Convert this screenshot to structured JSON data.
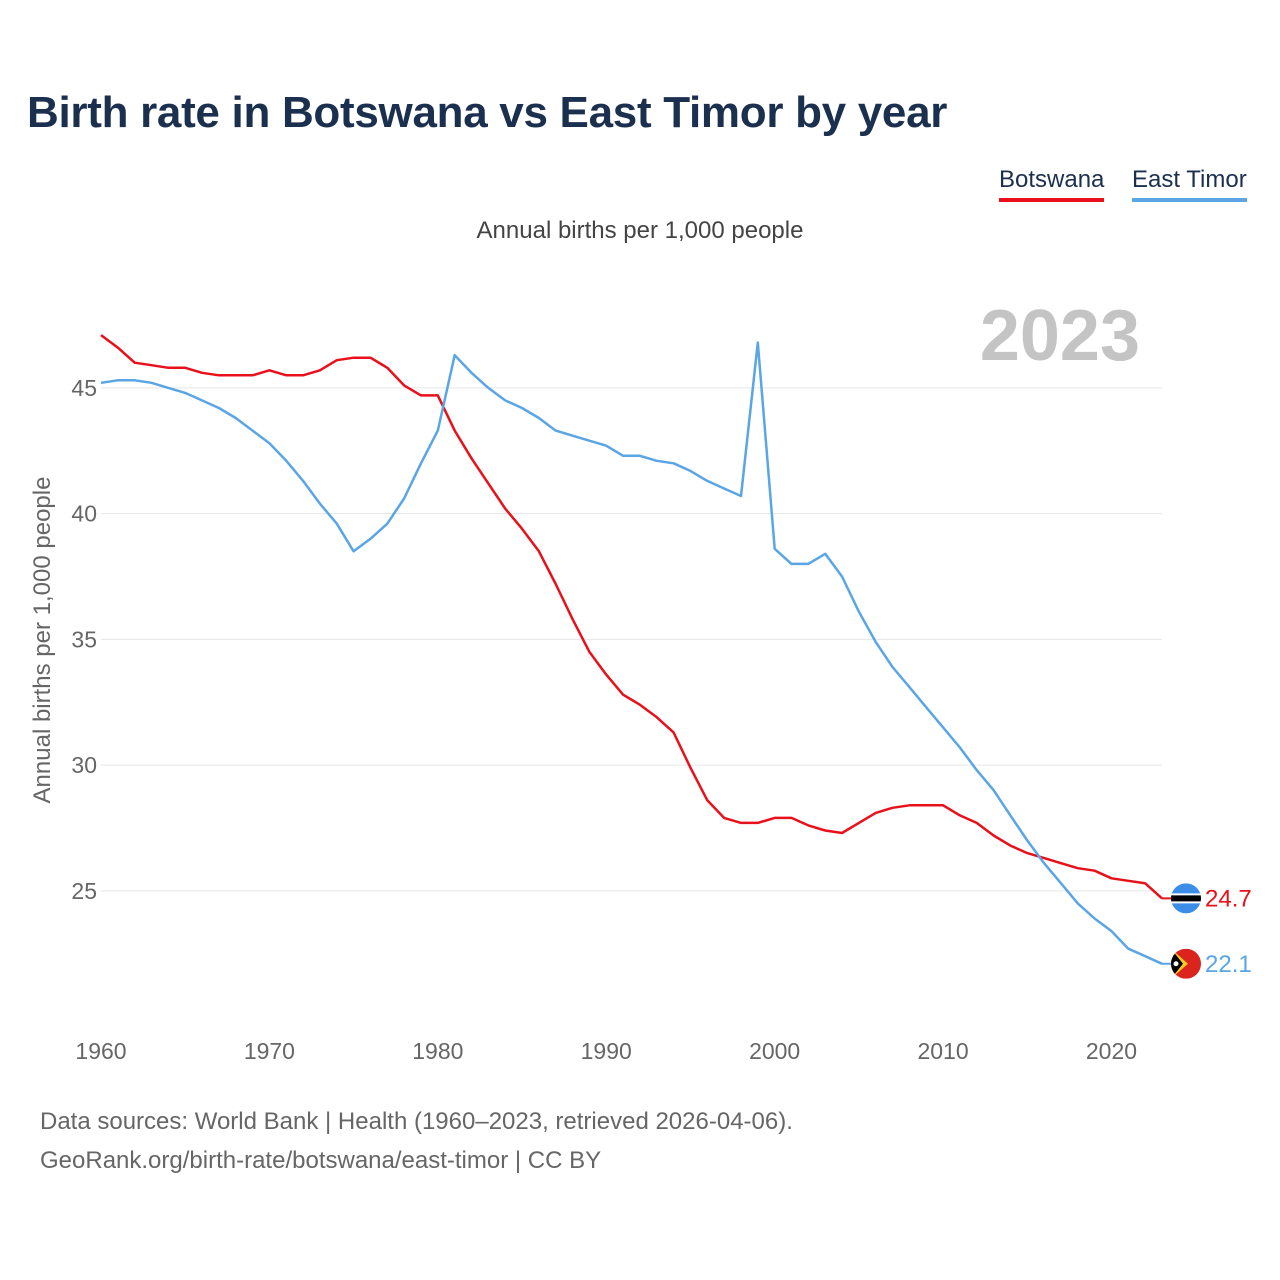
{
  "title": "Birth rate in Botswana vs East Timor by year",
  "subtitle": "Annual births per 1,000 people",
  "legend": [
    {
      "label": "Botswana",
      "color": "#e8101a"
    },
    {
      "label": "East Timor",
      "color": "#5aa5e6"
    }
  ],
  "year_watermark": "2023",
  "footer": {
    "line1": "Data sources: World Bank | Health (1960–2023, retrieved 2026-04-06).",
    "line2": "GeoRank.org/birth-rate/botswana/east-timor | CC BY"
  },
  "chart_data": {
    "type": "line",
    "title": "Birth rate in Botswana vs East Timor by year",
    "xlabel": "",
    "ylabel": "Annual births per 1,000 people",
    "xlim": [
      1960,
      2023
    ],
    "ylim": [
      20.5,
      47.5
    ],
    "xticks": [
      1960,
      1970,
      1980,
      1990,
      2000,
      2010,
      2020
    ],
    "yticks": [
      25,
      30,
      35,
      40,
      45
    ],
    "grid": true,
    "x": [
      1960,
      1961,
      1962,
      1963,
      1964,
      1965,
      1966,
      1967,
      1968,
      1969,
      1970,
      1971,
      1972,
      1973,
      1974,
      1975,
      1976,
      1977,
      1978,
      1979,
      1980,
      1981,
      1982,
      1983,
      1984,
      1985,
      1986,
      1987,
      1988,
      1989,
      1990,
      1991,
      1992,
      1993,
      1994,
      1995,
      1996,
      1997,
      1998,
      1999,
      2000,
      2001,
      2002,
      2003,
      2004,
      2005,
      2006,
      2007,
      2008,
      2009,
      2010,
      2011,
      2012,
      2013,
      2014,
      2015,
      2016,
      2017,
      2018,
      2019,
      2020,
      2021,
      2022,
      2023
    ],
    "series": [
      {
        "name": "Botswana",
        "color": "#e8101a",
        "end_label": "24.7",
        "flag": "botswana-flag-icon",
        "values": [
          47.1,
          46.6,
          46.0,
          45.9,
          45.8,
          45.8,
          45.6,
          45.5,
          45.5,
          45.5,
          45.7,
          45.5,
          45.5,
          45.7,
          46.1,
          46.2,
          46.2,
          45.8,
          45.1,
          44.7,
          44.7,
          43.3,
          42.2,
          41.2,
          40.2,
          39.4,
          38.5,
          37.2,
          35.8,
          34.5,
          33.6,
          32.8,
          32.4,
          31.9,
          31.3,
          29.9,
          28.6,
          27.9,
          27.7,
          27.7,
          27.9,
          27.9,
          27.6,
          27.4,
          27.3,
          27.7,
          28.1,
          28.3,
          28.4,
          28.4,
          28.4,
          28.0,
          27.7,
          27.2,
          26.8,
          26.5,
          26.3,
          26.1,
          25.9,
          25.8,
          25.5,
          25.4,
          25.3,
          24.7
        ]
      },
      {
        "name": "East Timor",
        "color": "#5aa5e6",
        "end_label": "22.1",
        "flag": "east-timor-flag-icon",
        "values": [
          45.2,
          45.3,
          45.3,
          45.2,
          45.0,
          44.8,
          44.5,
          44.2,
          43.8,
          43.3,
          42.8,
          42.1,
          41.3,
          40.4,
          39.6,
          38.5,
          39.0,
          39.6,
          40.6,
          42.0,
          43.3,
          46.3,
          45.6,
          45.0,
          44.5,
          44.2,
          43.8,
          43.3,
          43.1,
          42.9,
          42.7,
          42.3,
          42.3,
          42.1,
          42.0,
          41.7,
          41.3,
          41.0,
          40.7,
          46.8,
          38.6,
          38.0,
          38.0,
          38.4,
          37.5,
          36.1,
          34.9,
          33.9,
          33.1,
          32.3,
          31.5,
          30.7,
          29.8,
          29.0,
          28.0,
          27.0,
          26.1,
          25.3,
          24.5,
          23.9,
          23.4,
          22.7,
          22.4,
          22.1
        ]
      }
    ]
  }
}
